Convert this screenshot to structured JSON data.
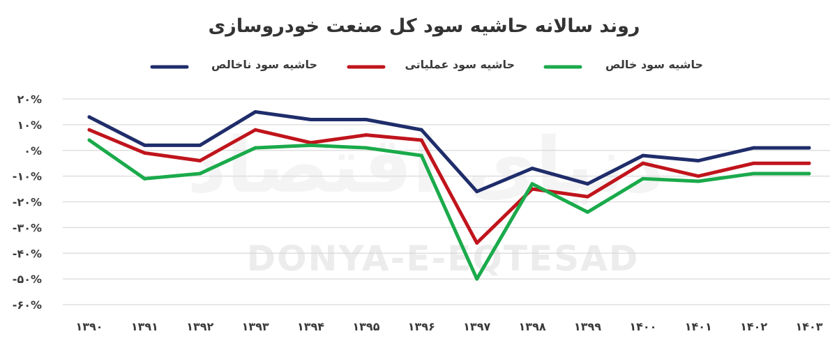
{
  "chart_data": {
    "type": "line",
    "title": "روند سالانه حاشیه سود کل صنعت خودروسازی",
    "categories": [
      "۱۳۹۰",
      "۱۳۹۱",
      "۱۳۹۲",
      "۱۳۹۳",
      "۱۳۹۴",
      "۱۳۹۵",
      "۱۳۹۶",
      "۱۳۹۷",
      "۱۳۹۸",
      "۱۳۹۹",
      "۱۴۰۰",
      "۱۴۰۱",
      "۱۴۰۲",
      "۱۴۰۳"
    ],
    "y_ticks": [
      20,
      10,
      0,
      -10,
      -20,
      -30,
      -40,
      -50,
      -60
    ],
    "y_tick_labels": [
      "۲۰%",
      "۱۰%",
      "۰%",
      "-۱۰%",
      "-۲۰%",
      "-۳۰%",
      "-۴۰%",
      "-۵۰%",
      "-۶۰%"
    ],
    "ylim": [
      -60,
      20
    ],
    "grid": true,
    "legend_position": "top",
    "series": [
      {
        "name": "حاشیه سود ناخالص",
        "color": "#1f2d6b",
        "values": [
          13,
          2,
          2,
          15,
          12,
          12,
          8,
          -16,
          -7,
          -13,
          -2,
          -4,
          1,
          1
        ]
      },
      {
        "name": "حاشیه سود عملیاتی",
        "color": "#c0141c",
        "values": [
          8,
          -1,
          -4,
          8,
          3,
          6,
          4,
          -36,
          -15,
          -18,
          -5,
          -10,
          -5,
          -5
        ]
      },
      {
        "name": "حاشیه سود خالص",
        "color": "#1aaa4b",
        "values": [
          4,
          -11,
          -9,
          1,
          2,
          1,
          -2,
          -50,
          -13,
          -24,
          -11,
          -12,
          -9,
          -9
        ]
      }
    ]
  },
  "watermark": {
    "text": "DONYA-E-EQTESAD",
    "logo_text": "دنیای اقتصاد"
  }
}
